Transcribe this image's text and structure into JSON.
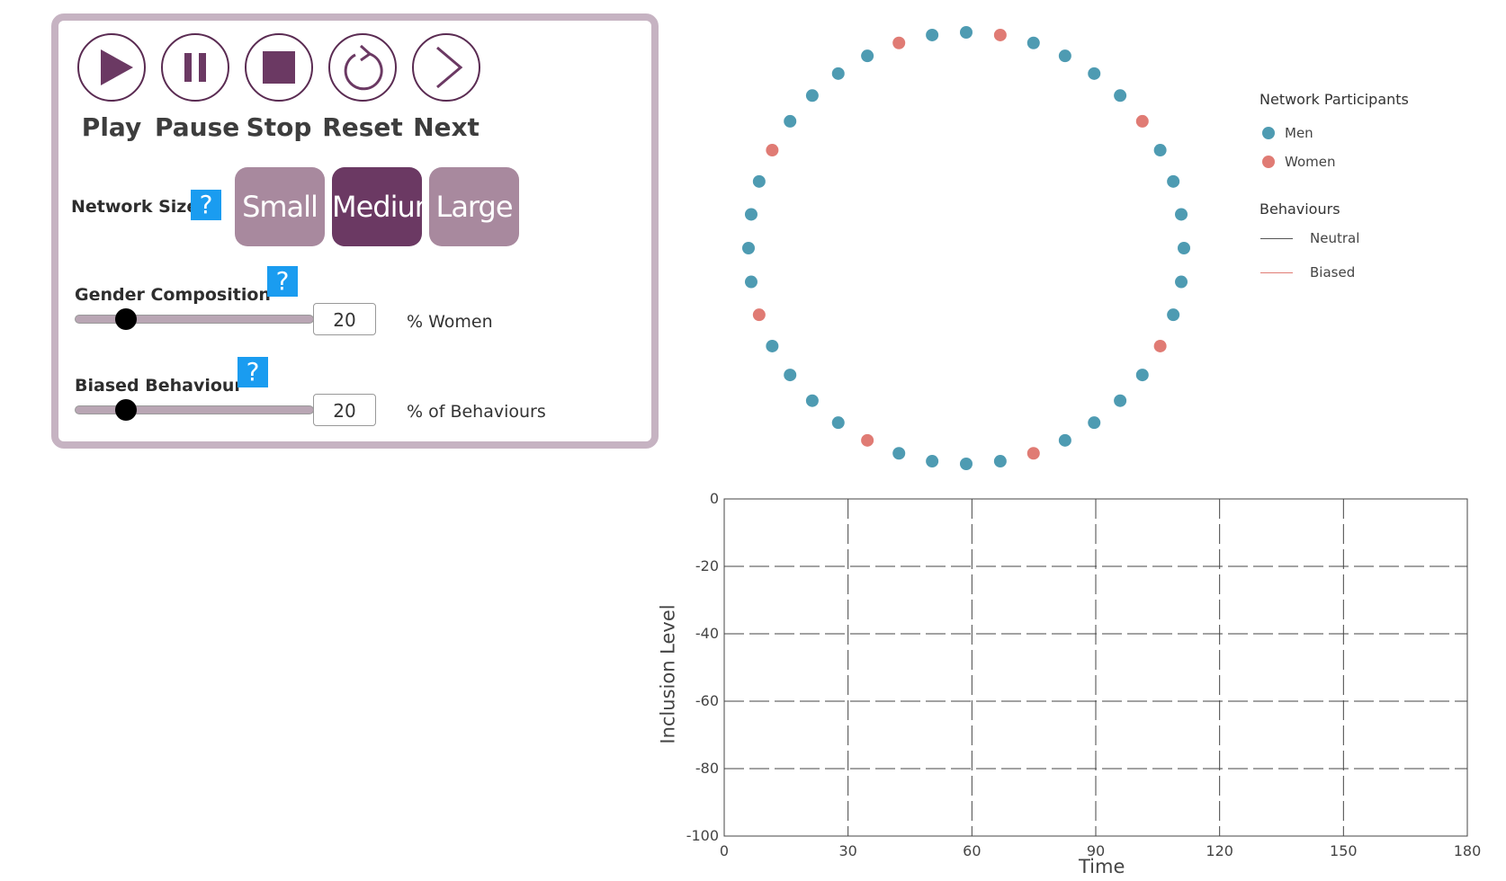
{
  "controls": {
    "play_label": "Play",
    "pause_label": "Pause",
    "stop_label": "Stop",
    "reset_label": "Reset",
    "next_label": "Next",
    "accent_color": "#5a2b52"
  },
  "network_size": {
    "label": "Network Size",
    "help": "?",
    "options": [
      "Small",
      "Medium",
      "Large"
    ],
    "selected": "Medium"
  },
  "gender_composition": {
    "label": "Gender Composition",
    "help": "?",
    "value": "20",
    "unit": "% Women",
    "slider_fraction": 0.2
  },
  "biased_behaviour": {
    "label": "Biased Behaviour",
    "help": "?",
    "value": "20",
    "unit": "% of Behaviours",
    "slider_fraction": 0.2
  },
  "legend": {
    "participants_title": "Network Participants",
    "men_label": "Men",
    "women_label": "Women",
    "behaviours_title": "Behaviours",
    "neutral_label": "Neutral",
    "biased_label": "Biased",
    "men_color": "#4e9bb2",
    "women_color": "#e07b74",
    "neutral_color": "#555555",
    "biased_color": "#e07b74"
  },
  "network": {
    "node_count": 40,
    "women_indices": [
      1,
      6,
      13,
      18,
      23,
      28,
      33,
      38
    ]
  },
  "chart_data": {
    "type": "line",
    "xlabel": "Time",
    "ylabel": "Inclusion Level",
    "xlim": [
      0,
      180
    ],
    "ylim": [
      -100,
      0
    ],
    "x_ticks": [
      "0",
      "30",
      "60",
      "90",
      "120",
      "150",
      "180"
    ],
    "y_ticks": [
      "0",
      "-20",
      "-40",
      "-60",
      "-80",
      "-100"
    ],
    "grid": true,
    "series": []
  }
}
